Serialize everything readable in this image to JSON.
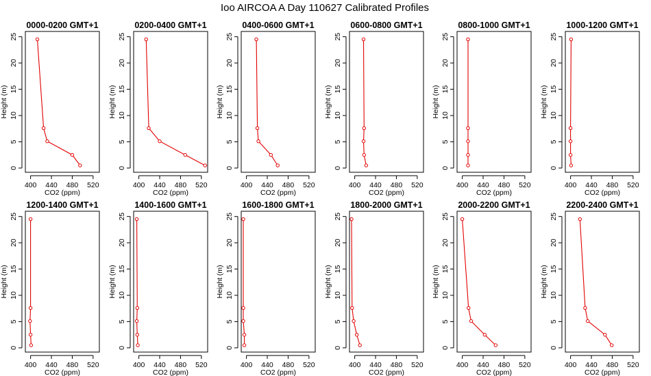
{
  "title": "Ioo AIRCOA A  Day 110627  Calibrated Profiles",
  "colors": {
    "profile": "#e00000"
  },
  "chart_data": [
    {
      "type": "line",
      "title": "0000-0200 GMT+1",
      "xlabel": "CO2 (ppm)",
      "ylabel": "Height (m)",
      "xlim": [
        390,
        532
      ],
      "ylim": [
        -0.8,
        26
      ],
      "xticks": [
        400,
        440,
        480,
        520
      ],
      "yticks": [
        0,
        5,
        10,
        15,
        20,
        25
      ],
      "grid": false,
      "points": [
        {
          "x": 413,
          "y": 24.5
        },
        {
          "x": 425,
          "y": 7.6
        },
        {
          "x": 432,
          "y": 5.1
        },
        {
          "x": 480,
          "y": 2.5
        },
        {
          "x": 495,
          "y": 0.5
        }
      ]
    },
    {
      "type": "line",
      "title": "0200-0400 GMT+1",
      "xlabel": "CO2 (ppm)",
      "ylabel": "Height (m)",
      "xlim": [
        390,
        532
      ],
      "ylim": [
        -0.8,
        26
      ],
      "xticks": [
        400,
        440,
        480,
        520
      ],
      "yticks": [
        0,
        5,
        10,
        15,
        20,
        25
      ],
      "grid": false,
      "points": [
        {
          "x": 414,
          "y": 24.5
        },
        {
          "x": 419,
          "y": 7.6
        },
        {
          "x": 440,
          "y": 5.1
        },
        {
          "x": 489,
          "y": 2.5
        },
        {
          "x": 527,
          "y": 0.5
        }
      ]
    },
    {
      "type": "line",
      "title": "0400-0600 GMT+1",
      "xlabel": "CO2 (ppm)",
      "ylabel": "Height (m)",
      "xlim": [
        390,
        532
      ],
      "ylim": [
        -0.8,
        26
      ],
      "xticks": [
        400,
        440,
        480,
        520
      ],
      "yticks": [
        0,
        5,
        10,
        15,
        20,
        25
      ],
      "grid": false,
      "points": [
        {
          "x": 419,
          "y": 24.5
        },
        {
          "x": 421,
          "y": 7.6
        },
        {
          "x": 423,
          "y": 5.1
        },
        {
          "x": 447,
          "y": 2.5
        },
        {
          "x": 460,
          "y": 0.5
        }
      ]
    },
    {
      "type": "line",
      "title": "0600-0800 GMT+1",
      "xlabel": "CO2 (ppm)",
      "ylabel": "Height (m)",
      "xlim": [
        390,
        532
      ],
      "ylim": [
        -0.8,
        26
      ],
      "xticks": [
        400,
        440,
        480,
        520
      ],
      "yticks": [
        0,
        5,
        10,
        15,
        20,
        25
      ],
      "grid": false,
      "points": [
        {
          "x": 417,
          "y": 24.5
        },
        {
          "x": 418,
          "y": 7.6
        },
        {
          "x": 417,
          "y": 5.1
        },
        {
          "x": 418,
          "y": 2.5
        },
        {
          "x": 422,
          "y": 0.5
        }
      ]
    },
    {
      "type": "line",
      "title": "0800-1000 GMT+1",
      "xlabel": "CO2 (ppm)",
      "ylabel": "Height (m)",
      "xlim": [
        390,
        532
      ],
      "ylim": [
        -0.8,
        26
      ],
      "xticks": [
        400,
        440,
        480,
        520
      ],
      "yticks": [
        0,
        5,
        10,
        15,
        20,
        25
      ],
      "grid": false,
      "points": [
        {
          "x": 411,
          "y": 24.5
        },
        {
          "x": 411,
          "y": 7.6
        },
        {
          "x": 411,
          "y": 5.1
        },
        {
          "x": 411,
          "y": 2.5
        },
        {
          "x": 411,
          "y": 0.5
        }
      ]
    },
    {
      "type": "line",
      "title": "1000-1200 GMT+1",
      "xlabel": "CO2 (ppm)",
      "ylabel": "Height (m)",
      "xlim": [
        390,
        532
      ],
      "ylim": [
        -0.8,
        26
      ],
      "xticks": [
        400,
        440,
        480,
        520
      ],
      "yticks": [
        0,
        5,
        10,
        15,
        20,
        25
      ],
      "grid": false,
      "points": [
        {
          "x": 401,
          "y": 24.5
        },
        {
          "x": 400,
          "y": 7.6
        },
        {
          "x": 400,
          "y": 5.1
        },
        {
          "x": 400,
          "y": 2.5
        },
        {
          "x": 401,
          "y": 0.5
        }
      ]
    },
    {
      "type": "line",
      "title": "1200-1400 GMT+1",
      "xlabel": "CO2 (ppm)",
      "ylabel": "Height (m)",
      "xlim": [
        390,
        532
      ],
      "ylim": [
        -0.8,
        26
      ],
      "xticks": [
        400,
        440,
        480,
        520
      ],
      "yticks": [
        0,
        5,
        10,
        15,
        20,
        25
      ],
      "grid": false,
      "points": [
        {
          "x": 400,
          "y": 24.5
        },
        {
          "x": 400,
          "y": 7.6
        },
        {
          "x": 399,
          "y": 5.1
        },
        {
          "x": 400,
          "y": 2.5
        },
        {
          "x": 401,
          "y": 0.5
        }
      ]
    },
    {
      "type": "line",
      "title": "1400-1600 GMT+1",
      "xlabel": "CO2 (ppm)",
      "ylabel": "Height (m)",
      "xlim": [
        390,
        532
      ],
      "ylim": [
        -0.8,
        26
      ],
      "xticks": [
        400,
        440,
        480,
        520
      ],
      "yticks": [
        0,
        5,
        10,
        15,
        20,
        25
      ],
      "grid": false,
      "points": [
        {
          "x": 396,
          "y": 24.5
        },
        {
          "x": 397,
          "y": 7.6
        },
        {
          "x": 396,
          "y": 5.1
        },
        {
          "x": 397,
          "y": 2.5
        },
        {
          "x": 398,
          "y": 0.5
        }
      ]
    },
    {
      "type": "line",
      "title": "1600-1800 GMT+1",
      "xlabel": "CO2 (ppm)",
      "ylabel": "Height (m)",
      "xlim": [
        390,
        532
      ],
      "ylim": [
        -0.8,
        26
      ],
      "xticks": [
        400,
        440,
        480,
        520
      ],
      "yticks": [
        0,
        5,
        10,
        15,
        20,
        25
      ],
      "grid": false,
      "points": [
        {
          "x": 394,
          "y": 24.5
        },
        {
          "x": 394,
          "y": 7.6
        },
        {
          "x": 394,
          "y": 5.1
        },
        {
          "x": 396,
          "y": 2.5
        },
        {
          "x": 396,
          "y": 0.5
        }
      ]
    },
    {
      "type": "line",
      "title": "1800-2000 GMT+1",
      "xlabel": "CO2 (ppm)",
      "ylabel": "Height (m)",
      "xlim": [
        390,
        532
      ],
      "ylim": [
        -0.8,
        26
      ],
      "xticks": [
        400,
        440,
        480,
        520
      ],
      "yticks": [
        0,
        5,
        10,
        15,
        20,
        25
      ],
      "grid": false,
      "points": [
        {
          "x": 394,
          "y": 24.5
        },
        {
          "x": 395,
          "y": 7.6
        },
        {
          "x": 398,
          "y": 5.1
        },
        {
          "x": 404,
          "y": 2.5
        },
        {
          "x": 410,
          "y": 0.5
        }
      ]
    },
    {
      "type": "line",
      "title": "2000-2200 GMT+1",
      "xlabel": "CO2 (ppm)",
      "ylabel": "Height (m)",
      "xlim": [
        390,
        532
      ],
      "ylim": [
        -0.8,
        26
      ],
      "xticks": [
        400,
        440,
        480,
        520
      ],
      "yticks": [
        0,
        5,
        10,
        15,
        20,
        25
      ],
      "grid": false,
      "points": [
        {
          "x": 400,
          "y": 24.5
        },
        {
          "x": 412,
          "y": 7.6
        },
        {
          "x": 417,
          "y": 5.1
        },
        {
          "x": 443,
          "y": 2.5
        },
        {
          "x": 464,
          "y": 0.5
        }
      ]
    },
    {
      "type": "line",
      "title": "2200-2400 GMT+1",
      "xlabel": "CO2 (ppm)",
      "ylabel": "Height (m)",
      "xlim": [
        390,
        532
      ],
      "ylim": [
        -0.8,
        26
      ],
      "xticks": [
        400,
        440,
        480,
        520
      ],
      "yticks": [
        0,
        5,
        10,
        15,
        20,
        25
      ],
      "grid": false,
      "points": [
        {
          "x": 418,
          "y": 24.5
        },
        {
          "x": 428,
          "y": 7.6
        },
        {
          "x": 433,
          "y": 5.1
        },
        {
          "x": 466,
          "y": 2.5
        },
        {
          "x": 479,
          "y": 0.5
        }
      ]
    }
  ]
}
